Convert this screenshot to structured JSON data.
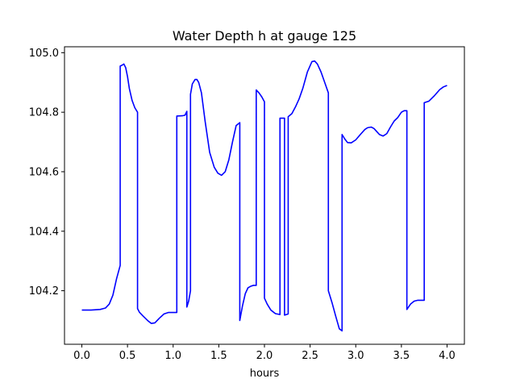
{
  "chart_data": {
    "type": "line",
    "title": "Water Depth h at gauge 125",
    "xlabel": "hours",
    "ylabel": "",
    "xlim": [
      -0.19,
      4.19
    ],
    "ylim": [
      104.02,
      105.02
    ],
    "xticks": [
      0.0,
      0.5,
      1.0,
      1.5,
      2.0,
      2.5,
      3.0,
      3.5,
      4.0
    ],
    "xtick_labels": [
      "0.0",
      "0.5",
      "1.0",
      "1.5",
      "2.0",
      "2.5",
      "3.0",
      "3.5",
      "4.0"
    ],
    "yticks": [
      104.2,
      104.4,
      104.6,
      104.8,
      105.0
    ],
    "ytick_labels": [
      "104.2",
      "104.4",
      "104.6",
      "104.8",
      "105.0"
    ],
    "grid": false,
    "series": [
      {
        "color": "#0000ff",
        "x": [
          0.0,
          0.1,
          0.2,
          0.26,
          0.3,
          0.34,
          0.38,
          0.42,
          0.42,
          0.44,
          0.46,
          0.48,
          0.5,
          0.52,
          0.55,
          0.58,
          0.61,
          0.61,
          0.63,
          0.67,
          0.72,
          0.76,
          0.8,
          0.85,
          0.9,
          0.95,
          1.0,
          1.04,
          1.04,
          1.1,
          1.13,
          1.15,
          1.15,
          1.17,
          1.19,
          1.19,
          1.21,
          1.24,
          1.26,
          1.28,
          1.31,
          1.35,
          1.4,
          1.45,
          1.49,
          1.53,
          1.57,
          1.61,
          1.65,
          1.69,
          1.73,
          1.73,
          1.76,
          1.79,
          1.82,
          1.85,
          1.88,
          1.91,
          1.91,
          1.94,
          1.97,
          2.0,
          2.0,
          2.03,
          2.07,
          2.12,
          2.17,
          2.17,
          2.22,
          2.22,
          2.26,
          2.26,
          2.3,
          2.34,
          2.38,
          2.42,
          2.47,
          2.52,
          2.55,
          2.58,
          2.62,
          2.66,
          2.7,
          2.7,
          2.74,
          2.78,
          2.82,
          2.85,
          2.85,
          2.88,
          2.91,
          2.95,
          3.0,
          3.05,
          3.1,
          3.13,
          3.17,
          3.2,
          3.23,
          3.26,
          3.3,
          3.34,
          3.38,
          3.42,
          3.46,
          3.5,
          3.53,
          3.56,
          3.56,
          3.6,
          3.64,
          3.68,
          3.72,
          3.75,
          3.75,
          3.8,
          3.86,
          3.92,
          3.96,
          4.0
        ],
        "y": [
          104.135,
          104.135,
          104.137,
          104.142,
          104.155,
          104.185,
          104.24,
          104.285,
          104.955,
          104.958,
          104.962,
          104.95,
          104.92,
          104.88,
          104.84,
          104.815,
          104.8,
          104.14,
          104.128,
          104.115,
          104.1,
          104.09,
          104.092,
          104.108,
          104.122,
          104.127,
          104.127,
          104.127,
          104.787,
          104.788,
          104.79,
          104.803,
          104.145,
          104.165,
          104.2,
          104.86,
          104.895,
          104.91,
          104.91,
          104.9,
          104.865,
          104.77,
          104.665,
          104.615,
          104.595,
          104.588,
          104.6,
          104.64,
          104.7,
          104.755,
          104.765,
          104.1,
          104.15,
          104.19,
          104.21,
          104.215,
          104.218,
          104.218,
          104.875,
          104.865,
          104.852,
          104.835,
          104.175,
          104.155,
          104.135,
          104.123,
          104.12,
          104.78,
          104.78,
          104.118,
          104.122,
          104.785,
          104.795,
          104.818,
          104.845,
          104.88,
          104.935,
          104.97,
          104.972,
          104.962,
          104.935,
          104.9,
          104.865,
          104.2,
          104.16,
          104.115,
          104.072,
          104.065,
          104.725,
          104.71,
          104.698,
          104.697,
          104.707,
          104.725,
          104.742,
          104.748,
          104.75,
          104.745,
          104.735,
          104.725,
          104.72,
          104.728,
          104.75,
          104.77,
          104.782,
          104.8,
          104.805,
          104.805,
          104.137,
          104.155,
          104.165,
          104.168,
          104.168,
          104.168,
          104.832,
          104.837,
          104.855,
          104.876,
          104.885,
          104.89
        ]
      }
    ]
  }
}
